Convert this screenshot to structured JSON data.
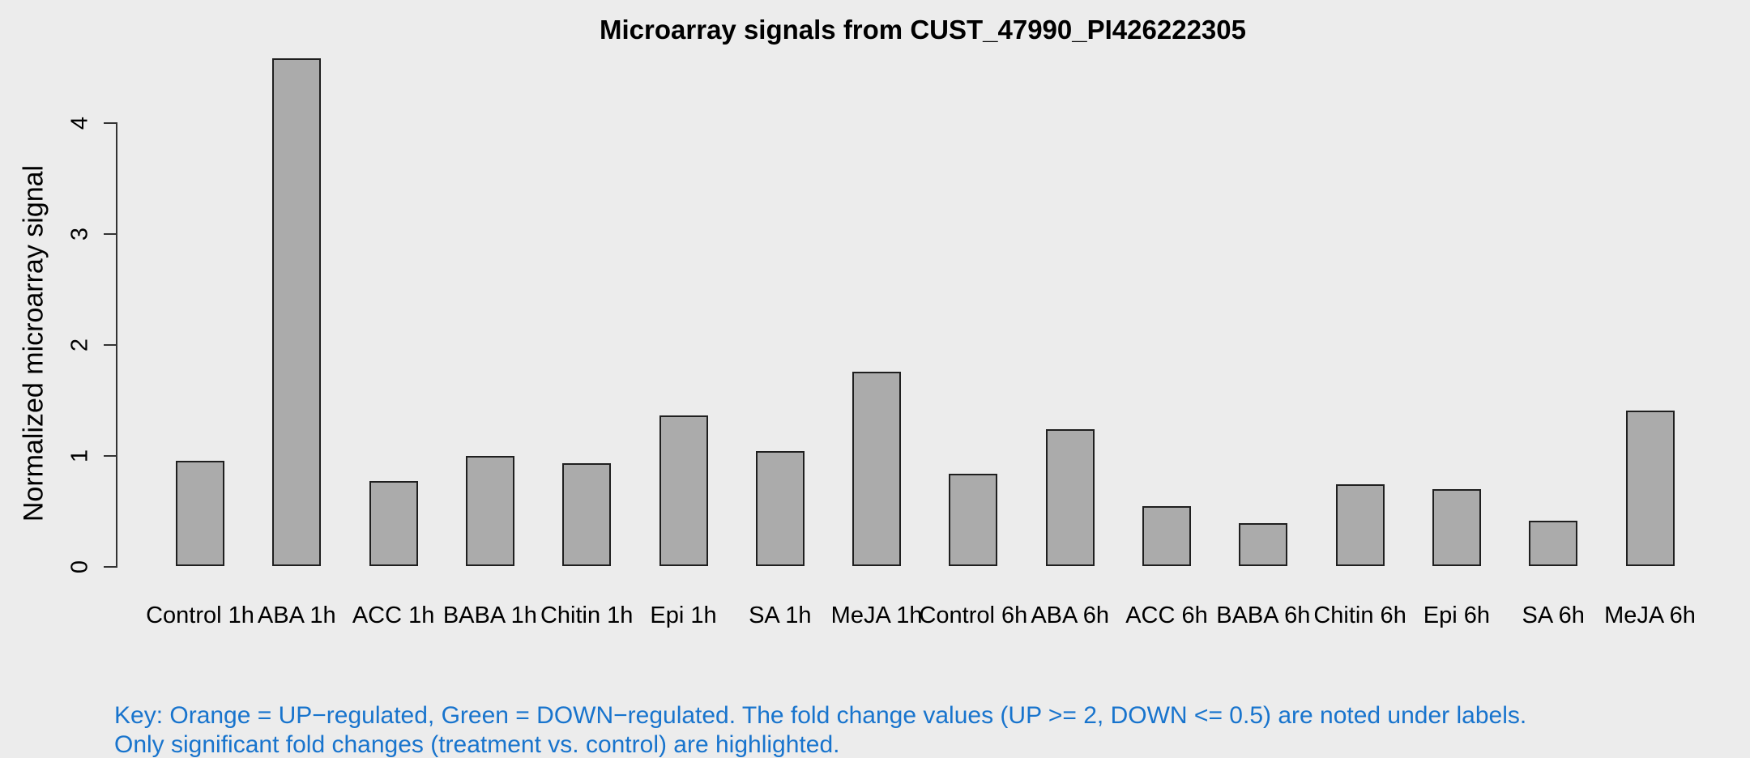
{
  "chart_data": {
    "type": "bar",
    "title": "Microarray signals from CUST_47990_PI426222305",
    "xlabel": "",
    "ylabel": "Normalized microarray signal",
    "categories": [
      "Control 1h",
      "ABA 1h",
      "ACC 1h",
      "BABA 1h",
      "Chitin 1h",
      "Epi 1h",
      "SA 1h",
      "MeJA 1h",
      "Control 6h",
      "ABA 6h",
      "ACC 6h",
      "BABA 6h",
      "Chitin 6h",
      "Epi 6h",
      "SA 6h",
      "MeJA 6h"
    ],
    "values": [
      0.95,
      4.58,
      0.77,
      0.99,
      0.93,
      1.36,
      1.04,
      1.75,
      0.83,
      1.23,
      0.54,
      0.39,
      0.74,
      0.69,
      0.41,
      1.4
    ],
    "yticks": [
      0,
      1,
      2,
      3,
      4
    ],
    "ylim": [
      0,
      4.6
    ],
    "grid": "off",
    "legend": "none",
    "bar_fill": "#ababab",
    "bar_border": "#1f1f1f"
  },
  "footnote": {
    "line1": "Key: Orange = UP−regulated, Green = DOWN−regulated. The fold change values (UP >= 2, DOWN <= 0.5) are noted under labels.",
    "line2": "Only significant fold changes (treatment vs. control) are highlighted.",
    "color": "#1874cd"
  },
  "colors": {
    "background": "#ececec",
    "axis": "#333333",
    "text": "#000000"
  }
}
